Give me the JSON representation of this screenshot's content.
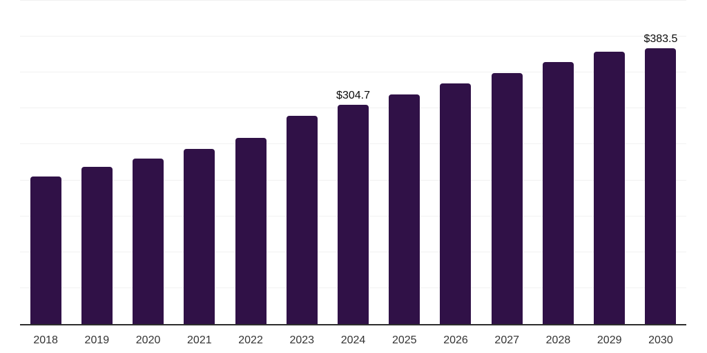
{
  "chart_data": {
    "type": "bar",
    "title": "",
    "xlabel": "",
    "ylabel": "",
    "categories": [
      "2018",
      "2019",
      "2020",
      "2021",
      "2022",
      "2023",
      "2024",
      "2025",
      "2026",
      "2027",
      "2028",
      "2029",
      "2030"
    ],
    "values": [
      205.4,
      218.5,
      230.3,
      244.0,
      258.7,
      290.0,
      304.7,
      319.9,
      334.5,
      349.5,
      364.9,
      378.6,
      383.5
    ],
    "annotations": [
      {
        "index": 6,
        "text": "$304.7"
      },
      {
        "index": 12,
        "text": "$383.5"
      }
    ],
    "ylim": [
      0,
      450
    ],
    "gridline_step": 50,
    "grid": "horizontal-only",
    "y_tick_labels_shown": false,
    "legend": "none",
    "colors": {
      "bar": "#301147",
      "axis_line": "#2d2d2d",
      "gridline": "#f1f1f1",
      "tick_label": "#333333",
      "value_label": "#0b0b0b",
      "background": "#ffffff"
    }
  }
}
